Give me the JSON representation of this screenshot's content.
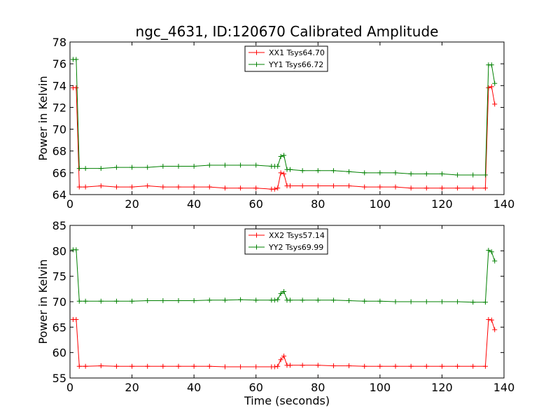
{
  "figure": {
    "title": "ngc_4631, ID:120670 Calibrated Amplitude",
    "xlabel": "Time (seconds)"
  },
  "colors": {
    "red": "#ff0000",
    "green": "#008000",
    "axis": "#000000"
  },
  "chart_data": [
    {
      "type": "line",
      "title": "ngc_4631, ID:120670 Calibrated Amplitude",
      "xlabel": "",
      "ylabel": "Power in Kelvin",
      "xlim": [
        0,
        140
      ],
      "ylim": [
        64,
        78
      ],
      "xticks": [
        "0",
        "20",
        "40",
        "60",
        "80",
        "100",
        "120",
        "140"
      ],
      "yticks": [
        "64",
        "66",
        "68",
        "70",
        "72",
        "74",
        "76",
        "78"
      ],
      "legend_position": "upper-center",
      "grid": false,
      "series": [
        {
          "name": "XX1 Tsys64.70",
          "color": "#ff0000",
          "marker": "+",
          "x": [
            1,
            2,
            3,
            5,
            10,
            15,
            20,
            25,
            30,
            35,
            40,
            45,
            50,
            55,
            60,
            65,
            66,
            67,
            68,
            69,
            70,
            71,
            75,
            80,
            85,
            90,
            95,
            100,
            105,
            110,
            115,
            120,
            125,
            130,
            134,
            135,
            136,
            137
          ],
          "y": [
            73.8,
            73.8,
            64.7,
            64.7,
            64.8,
            64.7,
            64.7,
            64.8,
            64.7,
            64.7,
            64.7,
            64.7,
            64.6,
            64.6,
            64.6,
            64.5,
            64.5,
            64.6,
            66.0,
            65.9,
            64.8,
            64.8,
            64.8,
            64.8,
            64.8,
            64.8,
            64.7,
            64.7,
            64.7,
            64.6,
            64.6,
            64.6,
            64.6,
            64.6,
            64.6,
            73.8,
            73.9,
            72.3
          ]
        },
        {
          "name": "YY1 Tsys66.72",
          "color": "#008000",
          "marker": "+",
          "x": [
            1,
            2,
            3,
            5,
            10,
            15,
            20,
            25,
            30,
            35,
            40,
            45,
            50,
            55,
            60,
            65,
            66,
            67,
            68,
            69,
            70,
            71,
            75,
            80,
            85,
            90,
            95,
            100,
            105,
            110,
            115,
            120,
            125,
            130,
            134,
            135,
            136,
            137
          ],
          "y": [
            76.4,
            76.4,
            66.4,
            66.4,
            66.4,
            66.5,
            66.5,
            66.5,
            66.6,
            66.6,
            66.6,
            66.7,
            66.7,
            66.7,
            66.7,
            66.6,
            66.6,
            66.6,
            67.5,
            67.6,
            66.3,
            66.3,
            66.2,
            66.2,
            66.2,
            66.1,
            66.0,
            66.0,
            66.0,
            65.9,
            65.9,
            65.9,
            65.8,
            65.8,
            65.8,
            75.9,
            75.9,
            74.2
          ]
        }
      ]
    },
    {
      "type": "line",
      "title": "",
      "xlabel": "Time (seconds)",
      "ylabel": "Power in Kelvin",
      "xlim": [
        0,
        140
      ],
      "ylim": [
        55,
        85
      ],
      "xticks": [
        "0",
        "20",
        "40",
        "60",
        "80",
        "100",
        "120",
        "140"
      ],
      "yticks": [
        "55",
        "60",
        "65",
        "70",
        "75",
        "80",
        "85"
      ],
      "legend_position": "upper-center",
      "grid": false,
      "series": [
        {
          "name": "XX2 Tsys57.14",
          "color": "#ff0000",
          "marker": "+",
          "x": [
            1,
            2,
            3,
            5,
            10,
            15,
            20,
            25,
            30,
            35,
            40,
            45,
            50,
            55,
            60,
            65,
            66,
            67,
            68,
            69,
            70,
            71,
            75,
            80,
            85,
            90,
            95,
            100,
            105,
            110,
            115,
            120,
            125,
            130,
            134,
            135,
            136,
            137
          ],
          "y": [
            66.5,
            66.5,
            57.3,
            57.3,
            57.4,
            57.3,
            57.3,
            57.3,
            57.3,
            57.3,
            57.3,
            57.3,
            57.2,
            57.2,
            57.2,
            57.2,
            57.2,
            57.3,
            58.6,
            59.3,
            57.5,
            57.5,
            57.5,
            57.5,
            57.4,
            57.4,
            57.3,
            57.3,
            57.3,
            57.3,
            57.3,
            57.3,
            57.3,
            57.3,
            57.3,
            66.5,
            66.4,
            64.5
          ]
        },
        {
          "name": "YY2 Tsys69.99",
          "color": "#008000",
          "marker": "+",
          "x": [
            1,
            2,
            3,
            5,
            10,
            15,
            20,
            25,
            30,
            35,
            40,
            45,
            50,
            55,
            60,
            65,
            66,
            67,
            68,
            69,
            70,
            71,
            75,
            80,
            85,
            90,
            95,
            100,
            105,
            110,
            115,
            120,
            125,
            130,
            134,
            135,
            136,
            137
          ],
          "y": [
            80.2,
            80.2,
            70.1,
            70.1,
            70.1,
            70.1,
            70.1,
            70.2,
            70.2,
            70.2,
            70.2,
            70.3,
            70.3,
            70.4,
            70.3,
            70.3,
            70.3,
            70.4,
            71.6,
            72.0,
            70.3,
            70.3,
            70.3,
            70.3,
            70.3,
            70.2,
            70.1,
            70.1,
            70.0,
            70.0,
            70.0,
            70.0,
            70.0,
            69.9,
            69.9,
            80.1,
            79.8,
            78.0
          ]
        }
      ]
    }
  ]
}
